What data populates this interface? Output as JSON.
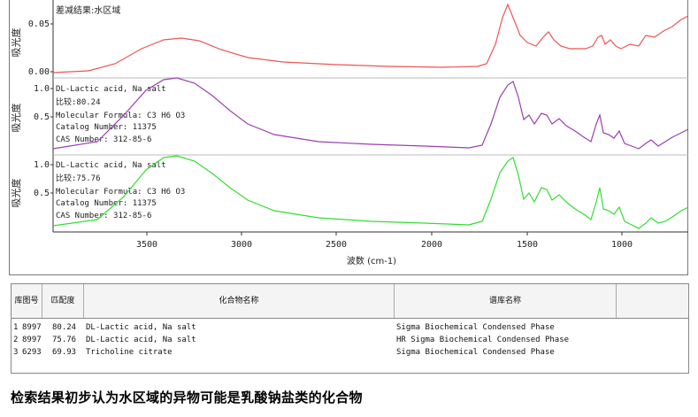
{
  "spectra": {
    "x_axis_label": "波数 (cm-1)",
    "x_ticks": [
      "3500",
      "3000",
      "2500",
      "2000",
      "1500",
      "1000"
    ],
    "panels": [
      {
        "ylabel": "吸光度",
        "yticks": [
          "0.05",
          "0.00"
        ],
        "title": "差减结果:水区域",
        "info_lines": [],
        "color": "#ee5555"
      },
      {
        "ylabel": "吸光度",
        "yticks": [
          "1.0",
          "0.5"
        ],
        "title": "DL-Lactic acid, Na salt",
        "info_lines": [
          "比较:80.24",
          "Molecular Formula:  C3 H6 O3",
          "Catalog Number: 11375",
          "CAS Number:  312-85-6"
        ],
        "color": "#9b3fb0"
      },
      {
        "ylabel": "吸光度",
        "yticks": [
          "1.0",
          "0.5"
        ],
        "title": "DL-Lactic acid, Na salt",
        "info_lines": [
          "比较:75.76",
          "Molecular Formula:  C3 H6 O3",
          "Catalog Number: 11375",
          "CAS Number:  312-85-6"
        ],
        "color": "#33dd33"
      }
    ]
  },
  "table": {
    "headers": {
      "index": "库图号",
      "match": "匹配度",
      "compound": "化合物名称",
      "library": "谱库名称"
    },
    "rows": [
      {
        "n": "1",
        "id": "8997",
        "match": "80.24",
        "compound": "DL-Lactic acid, Na salt",
        "library": "Sigma Biochemical Condensed Phase"
      },
      {
        "n": "2",
        "id": "8997",
        "match": "75.76",
        "compound": "DL-Lactic acid, Na salt",
        "library": "HR Sigma Biochemical Condensed Phase"
      },
      {
        "n": "3",
        "id": "6293",
        "match": "69.93",
        "compound": "Tricholine citrate",
        "library": "Sigma Biochemical Condensed Phase"
      }
    ]
  },
  "caption": "检索结果初步认为水区域的异物可能是乳酸钠盐类的化合物"
}
